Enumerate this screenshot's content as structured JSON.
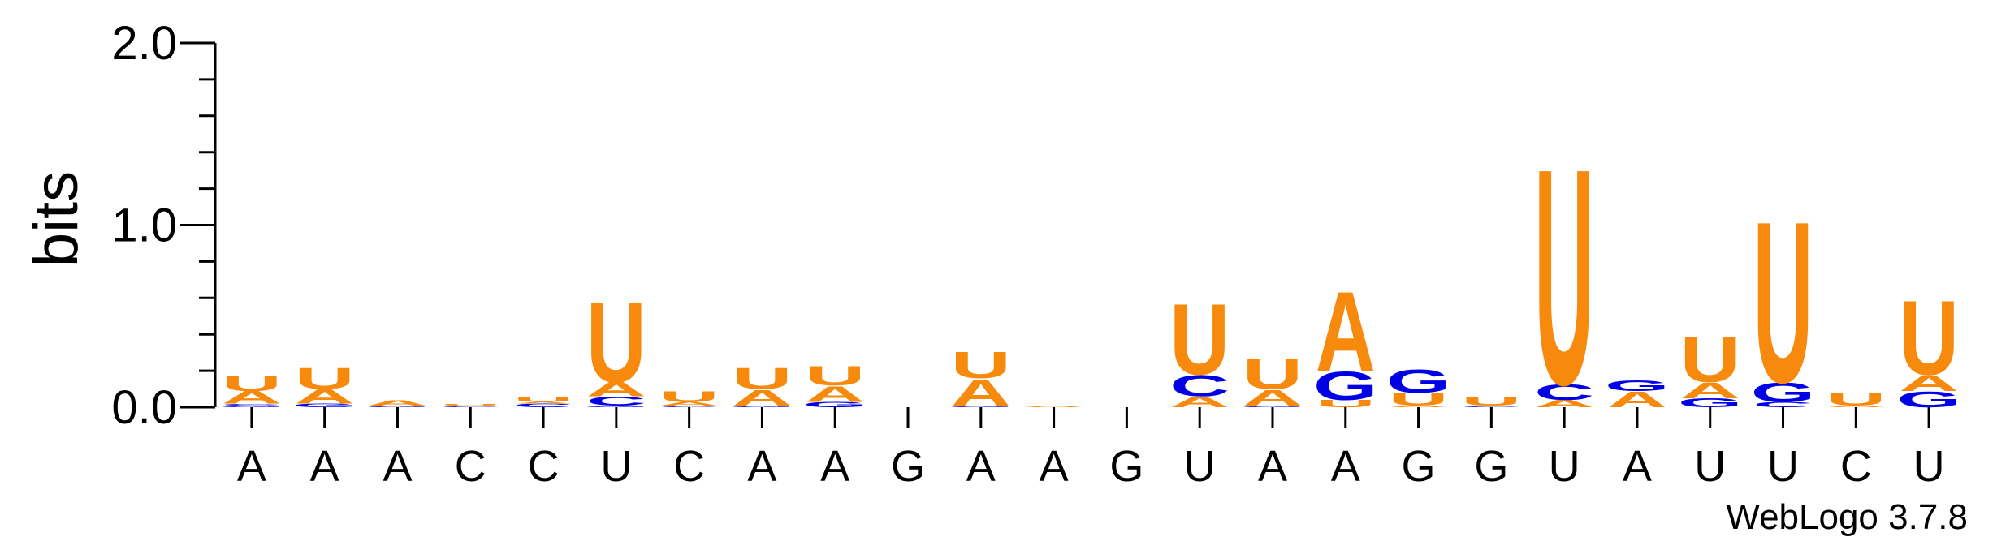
{
  "chart_data": {
    "type": "sequence-logo",
    "ylabel": "bits",
    "ylim": [
      0,
      2.0
    ],
    "yticks": [
      "0.0",
      "1.0",
      "2.0"
    ],
    "grid": false,
    "legend": "none",
    "colors": {
      "A": "#f7890c",
      "U": "#f7890c",
      "C": "#0000e6",
      "G": "#0000e6"
    },
    "positions": [
      {
        "label": "A",
        "stack": [
          {
            "base": "G",
            "bits": 0.01
          },
          {
            "base": "C",
            "bits": 0.01
          },
          {
            "base": "A",
            "bits": 0.07
          },
          {
            "base": "U",
            "bits": 0.09
          }
        ]
      },
      {
        "label": "A",
        "stack": [
          {
            "base": "G",
            "bits": 0.02
          },
          {
            "base": "A",
            "bits": 0.08
          },
          {
            "base": "U",
            "bits": 0.12
          }
        ]
      },
      {
        "label": "A",
        "stack": [
          {
            "base": "G",
            "bits": 0.01
          },
          {
            "base": "A",
            "bits": 0.03
          }
        ]
      },
      {
        "label": "C",
        "stack": [
          {
            "base": "C",
            "bits": 0.01
          },
          {
            "base": "U",
            "bits": 0.01
          }
        ]
      },
      {
        "label": "C",
        "stack": [
          {
            "base": "C",
            "bits": 0.02
          },
          {
            "base": "A",
            "bits": 0.01
          },
          {
            "base": "U",
            "bits": 0.03
          }
        ]
      },
      {
        "label": "U",
        "stack": [
          {
            "base": "G",
            "bits": 0.01
          },
          {
            "base": "C",
            "bits": 0.05
          },
          {
            "base": "A",
            "bits": 0.08
          },
          {
            "base": "U",
            "bits": 0.45
          }
        ]
      },
      {
        "label": "C",
        "stack": [
          {
            "base": "C",
            "bits": 0.01
          },
          {
            "base": "A",
            "bits": 0.02
          },
          {
            "base": "U",
            "bits": 0.06
          }
        ]
      },
      {
        "label": "A",
        "stack": [
          {
            "base": "G",
            "bits": 0.01
          },
          {
            "base": "A",
            "bits": 0.09
          },
          {
            "base": "U",
            "bits": 0.12
          }
        ]
      },
      {
        "label": "A",
        "stack": [
          {
            "base": "G",
            "bits": 0.03
          },
          {
            "base": "A",
            "bits": 0.09
          },
          {
            "base": "U",
            "bits": 0.11
          }
        ]
      },
      {
        "label": "G",
        "stack": []
      },
      {
        "label": "A",
        "stack": [
          {
            "base": "G",
            "bits": 0.01
          },
          {
            "base": "A",
            "bits": 0.15
          },
          {
            "base": "U",
            "bits": 0.15
          }
        ]
      },
      {
        "label": "A",
        "stack": [
          {
            "base": "A",
            "bits": 0.01
          }
        ]
      },
      {
        "label": "G",
        "stack": []
      },
      {
        "label": "U",
        "stack": [
          {
            "base": "A",
            "bits": 0.06
          },
          {
            "base": "C",
            "bits": 0.12
          },
          {
            "base": "U",
            "bits": 0.4
          }
        ]
      },
      {
        "label": "A",
        "stack": [
          {
            "base": "G",
            "bits": 0.01
          },
          {
            "base": "A",
            "bits": 0.09
          },
          {
            "base": "U",
            "bits": 0.17
          }
        ]
      },
      {
        "label": "A",
        "stack": [
          {
            "base": "U",
            "bits": 0.04
          },
          {
            "base": "G",
            "bits": 0.16
          },
          {
            "base": "A",
            "bits": 0.45
          }
        ]
      },
      {
        "label": "G",
        "stack": [
          {
            "base": "A",
            "bits": 0.01
          },
          {
            "base": "U",
            "bits": 0.07
          },
          {
            "base": "G",
            "bits": 0.13
          }
        ]
      },
      {
        "label": "G",
        "stack": [
          {
            "base": "C",
            "bits": 0.01
          },
          {
            "base": "U",
            "bits": 0.05
          }
        ]
      },
      {
        "label": "U",
        "stack": [
          {
            "base": "A",
            "bits": 0.04
          },
          {
            "base": "C",
            "bits": 0.09
          },
          {
            "base": "U",
            "bits": 1.22
          }
        ]
      },
      {
        "label": "A",
        "stack": [
          {
            "base": "A",
            "bits": 0.09
          },
          {
            "base": "G",
            "bits": 0.06
          }
        ]
      },
      {
        "label": "U",
        "stack": [
          {
            "base": "G",
            "bits": 0.05
          },
          {
            "base": "A",
            "bits": 0.09
          },
          {
            "base": "U",
            "bits": 0.26
          }
        ]
      },
      {
        "label": "U",
        "stack": [
          {
            "base": "C",
            "bits": 0.03
          },
          {
            "base": "G",
            "bits": 0.11
          },
          {
            "base": "U",
            "bits": 0.91
          }
        ]
      },
      {
        "label": "C",
        "stack": [
          {
            "base": "A",
            "bits": 0.01
          },
          {
            "base": "U",
            "bits": 0.07
          }
        ]
      },
      {
        "label": "U",
        "stack": [
          {
            "base": "G",
            "bits": 0.09
          },
          {
            "base": "A",
            "bits": 0.09
          },
          {
            "base": "U",
            "bits": 0.42
          }
        ]
      }
    ]
  },
  "footer": {
    "credit": "WebLogo 3.7.8"
  }
}
